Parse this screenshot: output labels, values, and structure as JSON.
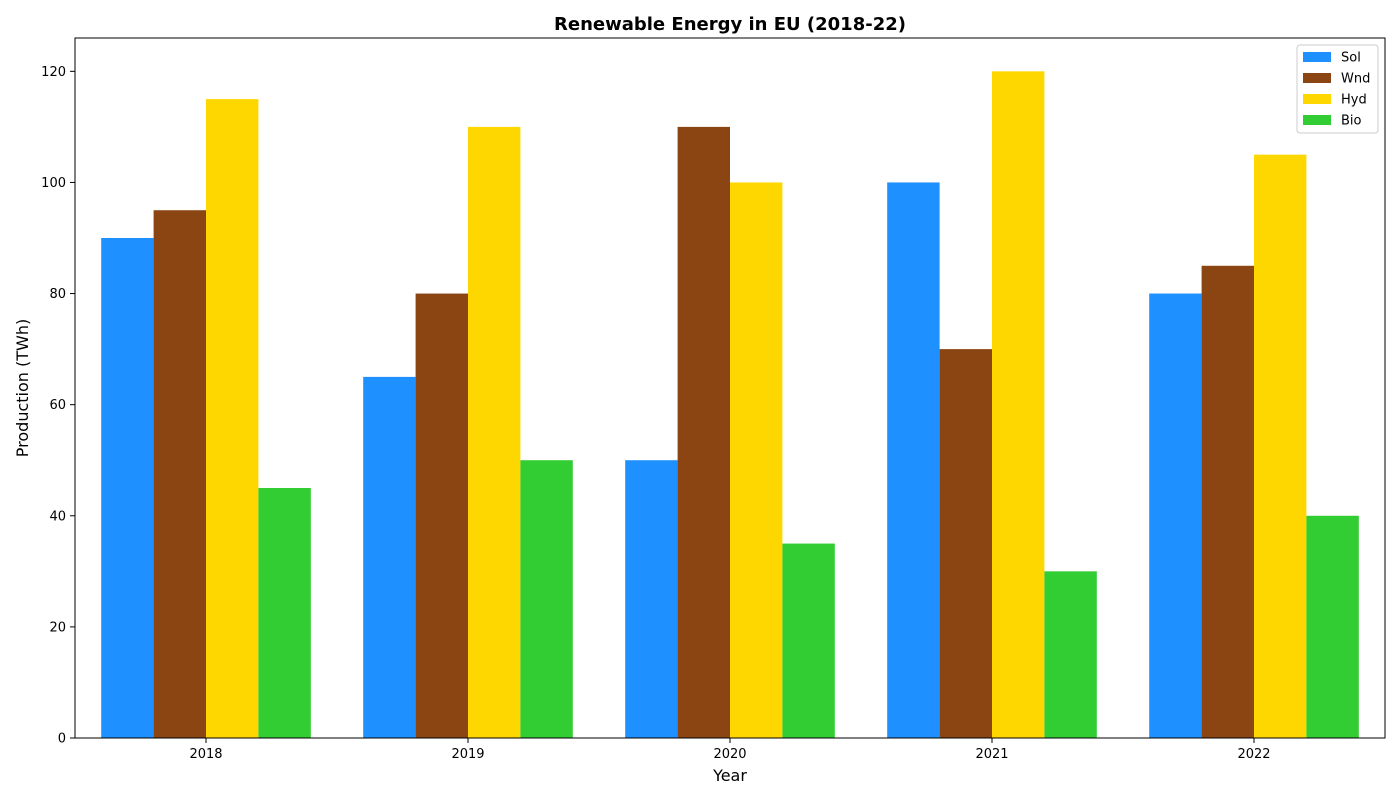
{
  "chart_data": {
    "type": "bar",
    "title": "Renewable Energy in EU (2018-22)",
    "xlabel": "Year",
    "ylabel": "Production (TWh)",
    "categories": [
      "2018",
      "2019",
      "2020",
      "2021",
      "2022"
    ],
    "series": [
      {
        "name": "Sol",
        "color": "#1E90FF",
        "values": [
          90,
          65,
          50,
          100,
          80
        ]
      },
      {
        "name": "Wnd",
        "color": "#8B4513",
        "values": [
          95,
          80,
          110,
          70,
          85
        ]
      },
      {
        "name": "Hyd",
        "color": "#FFD700",
        "values": [
          115,
          110,
          100,
          120,
          105
        ]
      },
      {
        "name": "Bio",
        "color": "#32CD32",
        "values": [
          45,
          50,
          35,
          30,
          40
        ]
      }
    ],
    "ylim": [
      0,
      126
    ],
    "yticks": [
      0,
      20,
      40,
      60,
      80,
      100,
      120
    ],
    "grid": false,
    "legend_position": "top-right"
  }
}
